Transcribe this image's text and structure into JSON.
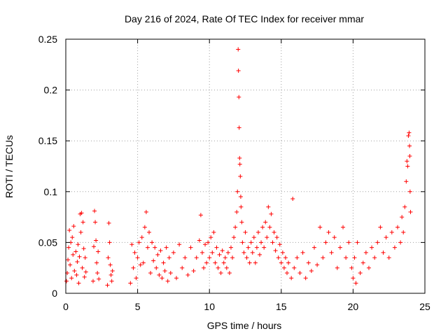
{
  "chart_data": {
    "type": "scatter",
    "title": "Day 216 of 2024, Rate Of TEC Index for receiver mmar",
    "xlabel": "GPS time / hours",
    "ylabel": "ROTI / TECUs",
    "xlim": [
      0,
      25
    ],
    "ylim": [
      0,
      0.25
    ],
    "xticks": [
      0,
      5,
      10,
      15,
      20,
      25
    ],
    "xtick_labels": [
      "0",
      "5",
      "10",
      "15",
      "20",
      "25"
    ],
    "yticks": [
      0,
      0.05,
      0.1,
      0.15,
      0.2,
      0.25
    ],
    "ytick_labels": [
      "0",
      "0.05",
      "0.1",
      "0.15",
      "0.2",
      "0.25"
    ],
    "grid": true,
    "marker": "+",
    "color": "#ff0000",
    "series": [
      {
        "name": "ROTI",
        "points": [
          [
            0.05,
            0.012
          ],
          [
            0.1,
            0.02
          ],
          [
            0.15,
            0.033
          ],
          [
            0.2,
            0.045
          ],
          [
            0.25,
            0.062
          ],
          [
            0.3,
            0.028
          ],
          [
            0.35,
            0.05
          ],
          [
            0.4,
            0.015
          ],
          [
            0.45,
            0.055
          ],
          [
            0.5,
            0.038
          ],
          [
            0.55,
            0.066
          ],
          [
            0.6,
            0.022
          ],
          [
            0.7,
            0.041
          ],
          [
            0.75,
            0.018
          ],
          [
            0.8,
            0.031
          ],
          [
            0.85,
            0.048
          ],
          [
            0.9,
            0.01
          ],
          [
            0.95,
            0.036
          ],
          [
            1.0,
            0.078
          ],
          [
            1.05,
            0.06
          ],
          [
            1.1,
            0.079
          ],
          [
            1.15,
            0.025
          ],
          [
            1.2,
            0.07
          ],
          [
            1.25,
            0.044
          ],
          [
            1.3,
            0.016
          ],
          [
            1.35,
            0.035
          ],
          [
            1.4,
            0.021
          ],
          [
            1.9,
            0.012
          ],
          [
            1.95,
            0.046
          ],
          [
            2.0,
            0.081
          ],
          [
            2.05,
            0.07
          ],
          [
            2.1,
            0.052
          ],
          [
            2.15,
            0.03
          ],
          [
            2.2,
            0.02
          ],
          [
            2.25,
            0.041
          ],
          [
            2.3,
            0.014
          ],
          [
            2.9,
            0.008
          ],
          [
            2.95,
            0.035
          ],
          [
            3.0,
            0.069
          ],
          [
            3.05,
            0.05
          ],
          [
            3.1,
            0.028
          ],
          [
            3.15,
            0.018
          ],
          [
            3.2,
            0.012
          ],
          [
            3.25,
            0.022
          ],
          [
            4.5,
            0.01
          ],
          [
            4.6,
            0.048
          ],
          [
            4.7,
            0.025
          ],
          [
            4.8,
            0.04
          ],
          [
            4.9,
            0.015
          ],
          [
            5.0,
            0.035
          ],
          [
            5.1,
            0.05
          ],
          [
            5.2,
            0.028
          ],
          [
            5.3,
            0.055
          ],
          [
            5.4,
            0.03
          ],
          [
            5.5,
            0.065
          ],
          [
            5.6,
            0.08
          ],
          [
            5.7,
            0.045
          ],
          [
            5.8,
            0.06
          ],
          [
            5.9,
            0.02
          ],
          [
            6.0,
            0.05
          ],
          [
            6.1,
            0.032
          ],
          [
            6.2,
            0.045
          ],
          [
            6.3,
            0.025
          ],
          [
            6.4,
            0.038
          ],
          [
            6.5,
            0.018
          ],
          [
            6.6,
            0.042
          ],
          [
            6.7,
            0.015
          ],
          [
            6.8,
            0.03
          ],
          [
            6.9,
            0.022
          ],
          [
            7.0,
            0.045
          ],
          [
            7.1,
            0.012
          ],
          [
            7.2,
            0.035
          ],
          [
            7.3,
            0.02
          ],
          [
            7.5,
            0.04
          ],
          [
            7.7,
            0.015
          ],
          [
            7.9,
            0.048
          ],
          [
            8.1,
            0.025
          ],
          [
            8.3,
            0.035
          ],
          [
            8.5,
            0.018
          ],
          [
            8.7,
            0.045
          ],
          [
            8.9,
            0.022
          ],
          [
            9.1,
            0.035
          ],
          [
            9.3,
            0.052
          ],
          [
            9.4,
            0.077
          ],
          [
            9.5,
            0.04
          ],
          [
            9.6,
            0.025
          ],
          [
            9.7,
            0.048
          ],
          [
            9.8,
            0.03
          ],
          [
            9.9,
            0.05
          ],
          [
            10.0,
            0.035
          ],
          [
            10.1,
            0.055
          ],
          [
            10.2,
            0.04
          ],
          [
            10.3,
            0.06
          ],
          [
            10.4,
            0.03
          ],
          [
            10.5,
            0.045
          ],
          [
            10.6,
            0.025
          ],
          [
            10.7,
            0.038
          ],
          [
            10.8,
            0.02
          ],
          [
            10.9,
            0.042
          ],
          [
            11.0,
            0.03
          ],
          [
            11.1,
            0.035
          ],
          [
            11.2,
            0.025
          ],
          [
            11.3,
            0.04
          ],
          [
            11.4,
            0.02
          ],
          [
            11.5,
            0.045
          ],
          [
            11.6,
            0.035
          ],
          [
            11.7,
            0.055
          ],
          [
            11.8,
            0.065
          ],
          [
            11.9,
            0.08
          ],
          [
            11.95,
            0.1
          ],
          [
            12.0,
            0.24
          ],
          [
            12.02,
            0.219
          ],
          [
            12.05,
            0.193
          ],
          [
            12.07,
            0.163
          ],
          [
            12.1,
            0.133
          ],
          [
            12.12,
            0.127
          ],
          [
            12.15,
            0.115
          ],
          [
            12.18,
            0.095
          ],
          [
            12.2,
            0.085
          ],
          [
            12.25,
            0.07
          ],
          [
            12.3,
            0.05
          ],
          [
            12.4,
            0.04
          ],
          [
            12.5,
            0.06
          ],
          [
            12.6,
            0.035
          ],
          [
            12.7,
            0.045
          ],
          [
            12.8,
            0.03
          ],
          [
            12.9,
            0.05
          ],
          [
            13.0,
            0.04
          ],
          [
            13.1,
            0.055
          ],
          [
            13.2,
            0.03
          ],
          [
            13.3,
            0.045
          ],
          [
            13.4,
            0.06
          ],
          [
            13.5,
            0.038
          ],
          [
            13.6,
            0.05
          ],
          [
            13.7,
            0.065
          ],
          [
            13.8,
            0.045
          ],
          [
            13.9,
            0.07
          ],
          [
            14.0,
            0.055
          ],
          [
            14.1,
            0.085
          ],
          [
            14.2,
            0.065
          ],
          [
            14.3,
            0.078
          ],
          [
            14.4,
            0.05
          ],
          [
            14.5,
            0.06
          ],
          [
            14.6,
            0.042
          ],
          [
            14.7,
            0.055
          ],
          [
            14.8,
            0.035
          ],
          [
            14.9,
            0.048
          ],
          [
            15.0,
            0.03
          ],
          [
            15.1,
            0.04
          ],
          [
            15.2,
            0.025
          ],
          [
            15.3,
            0.035
          ],
          [
            15.4,
            0.02
          ],
          [
            15.5,
            0.03
          ],
          [
            15.7,
            0.015
          ],
          [
            15.8,
            0.093
          ],
          [
            15.9,
            0.025
          ],
          [
            16.1,
            0.035
          ],
          [
            16.3,
            0.02
          ],
          [
            16.5,
            0.04
          ],
          [
            16.7,
            0.015
          ],
          [
            16.9,
            0.03
          ],
          [
            17.1,
            0.022
          ],
          [
            17.3,
            0.045
          ],
          [
            17.5,
            0.028
          ],
          [
            17.7,
            0.065
          ],
          [
            17.9,
            0.035
          ],
          [
            18.1,
            0.05
          ],
          [
            18.3,
            0.06
          ],
          [
            18.5,
            0.04
          ],
          [
            18.7,
            0.055
          ],
          [
            18.9,
            0.025
          ],
          [
            19.1,
            0.045
          ],
          [
            19.3,
            0.065
          ],
          [
            19.5,
            0.035
          ],
          [
            19.7,
            0.05
          ],
          [
            19.9,
            0.025
          ],
          [
            20.0,
            0.015
          ],
          [
            20.1,
            0.035
          ],
          [
            20.2,
            0.01
          ],
          [
            20.3,
            0.05
          ],
          [
            20.5,
            0.02
          ],
          [
            20.7,
            0.03
          ],
          [
            20.9,
            0.04
          ],
          [
            21.1,
            0.025
          ],
          [
            21.3,
            0.045
          ],
          [
            21.5,
            0.035
          ],
          [
            21.7,
            0.05
          ],
          [
            21.9,
            0.065
          ],
          [
            22.1,
            0.04
          ],
          [
            22.3,
            0.055
          ],
          [
            22.5,
            0.035
          ],
          [
            22.7,
            0.06
          ],
          [
            22.9,
            0.045
          ],
          [
            23.1,
            0.065
          ],
          [
            23.3,
            0.05
          ],
          [
            23.4,
            0.075
          ],
          [
            23.5,
            0.06
          ],
          [
            23.6,
            0.085
          ],
          [
            23.7,
            0.11
          ],
          [
            23.75,
            0.13
          ],
          [
            23.8,
            0.125
          ],
          [
            23.85,
            0.155
          ],
          [
            23.9,
            0.158
          ],
          [
            23.93,
            0.145
          ],
          [
            23.95,
            0.135
          ],
          [
            23.97,
            0.1
          ],
          [
            24.0,
            0.08
          ]
        ]
      }
    ]
  }
}
